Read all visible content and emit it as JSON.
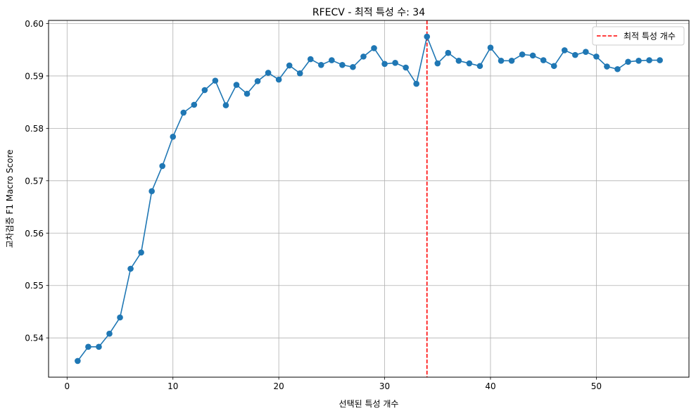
{
  "chart_data": {
    "type": "line",
    "title": "RFECV - 최적 특성 수: 34",
    "xlabel": "선택된 특성 개수",
    "ylabel": "교차검증 F1 Macro Score",
    "xlim": [
      -1.75,
      58.75
    ],
    "ylim": [
      0.5325,
      0.6006
    ],
    "xticks": [
      0,
      10,
      20,
      30,
      40,
      50
    ],
    "yticks": [
      0.54,
      0.55,
      0.56,
      0.57,
      0.58,
      0.59,
      0.6
    ],
    "ytick_labels": [
      "0.54",
      "0.55",
      "0.56",
      "0.57",
      "0.58",
      "0.59",
      "0.60"
    ],
    "grid": true,
    "legend_position": "top-right",
    "series": [
      {
        "marker": "circle",
        "color": "#1f77b4",
        "x": [
          1,
          2,
          3,
          4,
          5,
          6,
          7,
          8,
          9,
          10,
          11,
          12,
          13,
          14,
          15,
          16,
          17,
          18,
          19,
          20,
          21,
          22,
          23,
          24,
          25,
          26,
          27,
          28,
          29,
          30,
          31,
          32,
          33,
          34,
          35,
          36,
          37,
          38,
          39,
          40,
          41,
          42,
          43,
          44,
          45,
          46,
          47,
          48,
          49,
          50,
          51,
          52,
          53,
          54,
          55,
          56
        ],
        "y": [
          0.5356,
          0.5383,
          0.5383,
          0.5408,
          0.5439,
          0.5532,
          0.5563,
          0.568,
          0.5728,
          0.5784,
          0.583,
          0.5845,
          0.5873,
          0.5891,
          0.5844,
          0.5883,
          0.5866,
          0.589,
          0.5906,
          0.5893,
          0.592,
          0.5905,
          0.5932,
          0.5921,
          0.593,
          0.5921,
          0.5917,
          0.5937,
          0.5953,
          0.5923,
          0.5925,
          0.5916,
          0.5885,
          0.5975,
          0.5924,
          0.5944,
          0.5929,
          0.5924,
          0.5919,
          0.5954,
          0.5929,
          0.5929,
          0.5941,
          0.5939,
          0.593,
          0.5919,
          0.5949,
          0.594,
          0.5946,
          0.5937,
          0.5918,
          0.5913,
          0.5927,
          0.5929,
          0.593,
          0.593
        ]
      }
    ],
    "reference_line": {
      "orientation": "vertical",
      "x": 34,
      "color": "#ff0000",
      "style": "dashed",
      "label": "최적 특성 개수"
    }
  }
}
